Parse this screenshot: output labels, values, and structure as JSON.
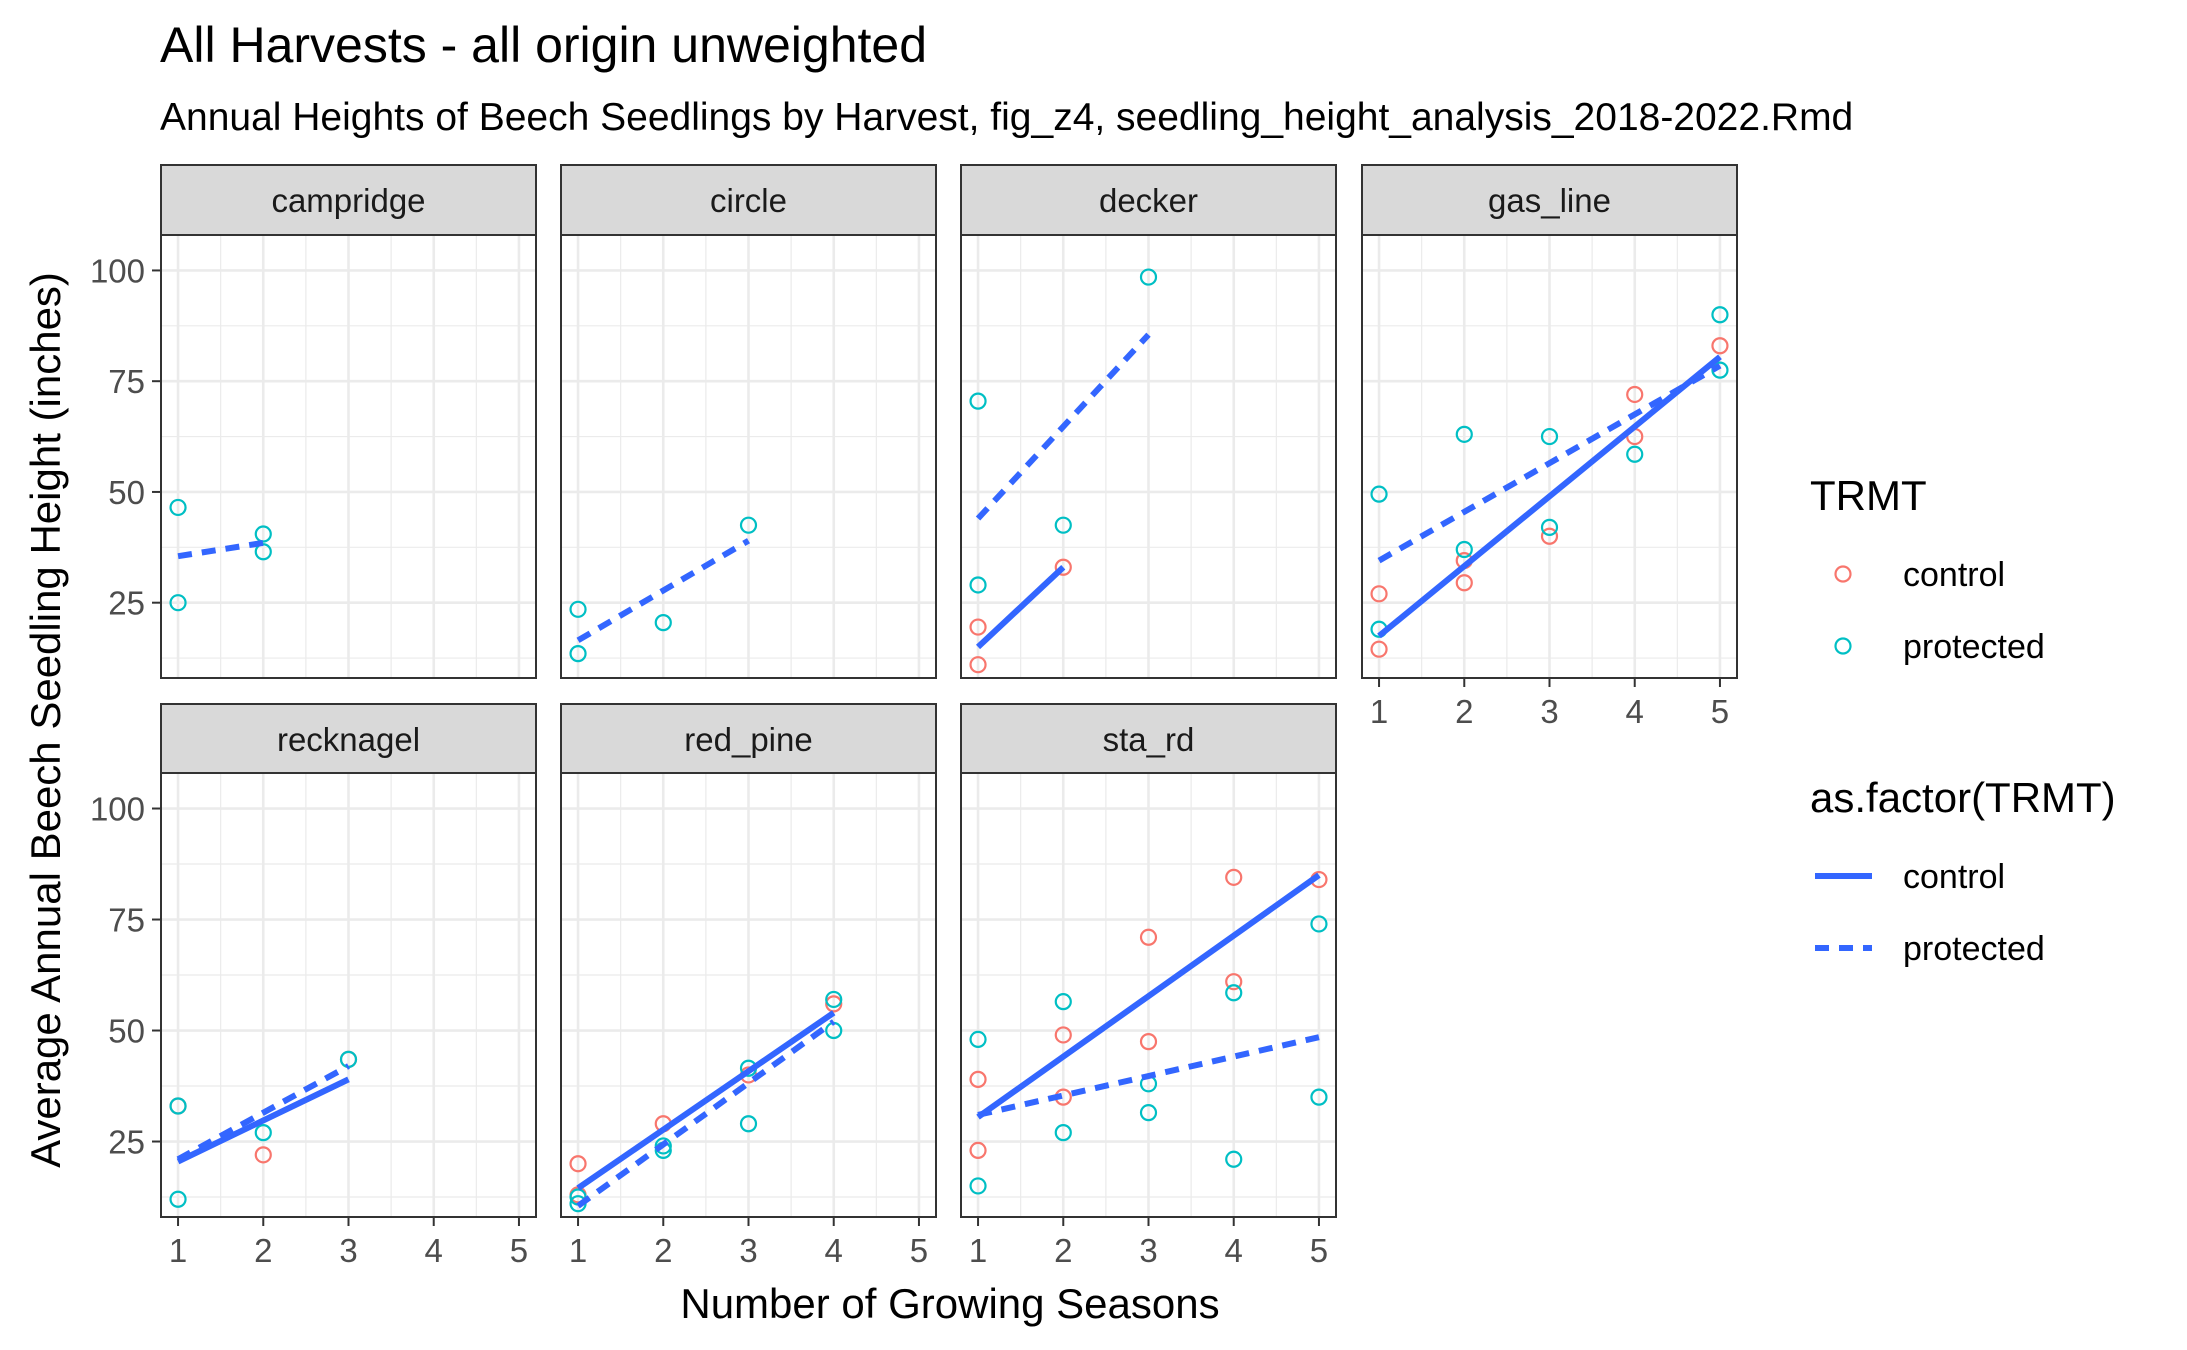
{
  "title": "All Harvests - all origin unweighted",
  "subtitle": "Annual Heights of Beech Seedlings by Harvest, fig_z4, seedling_height_analysis_2018-2022.Rmd",
  "colors": {
    "control": "#F8766D",
    "protected": "#00BFC4",
    "fit_line": "#3366FF",
    "strip_fill": "#D9D9D9",
    "grid": "#EBEBEB",
    "panel_border": "#333333"
  },
  "chart_data": {
    "type": "scatter",
    "xlabel": "Number of Growing Seasons",
    "ylabel": "Average Annual Beech Seedling Height (inches)",
    "xlim": [
      0.8,
      5.2
    ],
    "ylim": [
      8,
      108
    ],
    "x_ticks": [
      1,
      2,
      3,
      4,
      5
    ],
    "y_ticks": [
      25,
      50,
      75,
      100
    ],
    "grid": true,
    "legend_position": "right",
    "legends": [
      {
        "title": "TRMT",
        "kind": "point",
        "items": [
          {
            "label": "control",
            "color": "#F8766D"
          },
          {
            "label": "protected",
            "color": "#00BFC4"
          }
        ]
      },
      {
        "title": "as.factor(TRMT)",
        "kind": "line",
        "items": [
          {
            "label": "control",
            "linetype": "solid"
          },
          {
            "label": "protected",
            "linetype": "dashed"
          }
        ]
      }
    ],
    "panels": [
      {
        "name": "campridge",
        "points": {
          "control": [],
          "protected": [
            [
              1,
              46.5
            ],
            [
              1,
              25
            ],
            [
              2,
              40.5
            ],
            [
              2,
              36.5
            ]
          ]
        },
        "fits": {
          "control": null,
          "protected": [
            [
              1,
              35.5
            ],
            [
              2,
              38.5
            ]
          ]
        }
      },
      {
        "name": "circle",
        "points": {
          "control": [],
          "protected": [
            [
              1,
              23.5
            ],
            [
              1,
              13.5
            ],
            [
              2,
              20.5
            ],
            [
              3,
              42.5
            ]
          ]
        },
        "fits": {
          "control": null,
          "protected": [
            [
              1,
              16.5
            ],
            [
              3,
              39
            ]
          ]
        }
      },
      {
        "name": "decker",
        "points": {
          "control": [
            [
              1,
              19.5
            ],
            [
              1,
              11
            ],
            [
              2,
              33
            ]
          ],
          "protected": [
            [
              1,
              70.5
            ],
            [
              1,
              29
            ],
            [
              2,
              42.5
            ],
            [
              3,
              98.5
            ]
          ]
        },
        "fits": {
          "control": [
            [
              1,
              15
            ],
            [
              2,
              33
            ]
          ],
          "protected": [
            [
              1,
              44
            ],
            [
              3,
              85.5
            ]
          ]
        }
      },
      {
        "name": "gas_line",
        "points": {
          "control": [
            [
              1,
              27
            ],
            [
              1,
              14.5
            ],
            [
              2,
              34.5
            ],
            [
              2,
              29.5
            ],
            [
              3,
              40
            ],
            [
              4,
              72
            ],
            [
              4,
              62.5
            ],
            [
              5,
              83
            ]
          ],
          "protected": [
            [
              1,
              49.5
            ],
            [
              1,
              19
            ],
            [
              2,
              63
            ],
            [
              2,
              37
            ],
            [
              3,
              62.5
            ],
            [
              3,
              42
            ],
            [
              4,
              58.5
            ],
            [
              5,
              90
            ],
            [
              5,
              77.5
            ]
          ]
        },
        "fits": {
          "control": [
            [
              1,
              17.5
            ],
            [
              5,
              80.5
            ]
          ],
          "protected": [
            [
              1,
              34.5
            ],
            [
              5,
              78.5
            ]
          ]
        }
      },
      {
        "name": "recknagel",
        "points": {
          "control": [
            [
              1,
              33
            ],
            [
              2,
              22
            ],
            [
              3,
              43.5
            ]
          ],
          "protected": [
            [
              1,
              33
            ],
            [
              1,
              12
            ],
            [
              2,
              27
            ],
            [
              3,
              43.5
            ]
          ]
        },
        "fits": {
          "control": [
            [
              1,
              20.5
            ],
            [
              3,
              39
            ]
          ],
          "protected": [
            [
              1,
              21
            ],
            [
              3,
              42
            ]
          ]
        }
      },
      {
        "name": "red_pine",
        "points": {
          "control": [
            [
              1,
              20
            ],
            [
              1,
              13
            ],
            [
              2,
              29
            ],
            [
              3,
              40
            ],
            [
              4,
              56
            ]
          ],
          "protected": [
            [
              1,
              12.5
            ],
            [
              1,
              11
            ],
            [
              2,
              24
            ],
            [
              2,
              23
            ],
            [
              3,
              41.5
            ],
            [
              3,
              29
            ],
            [
              4,
              57
            ],
            [
              4,
              50
            ]
          ]
        },
        "fits": {
          "control": [
            [
              1,
              14.5
            ],
            [
              4,
              54
            ]
          ],
          "protected": [
            [
              1,
              10.5
            ],
            [
              4,
              52
            ]
          ]
        }
      },
      {
        "name": "sta_rd",
        "points": {
          "control": [
            [
              1,
              39
            ],
            [
              1,
              23
            ],
            [
              2,
              49
            ],
            [
              2,
              35
            ],
            [
              3,
              71
            ],
            [
              3,
              47.5
            ],
            [
              4,
              84.5
            ],
            [
              4,
              61
            ],
            [
              5,
              84
            ]
          ],
          "protected": [
            [
              1,
              48
            ],
            [
              1,
              15
            ],
            [
              2,
              56.5
            ],
            [
              2,
              27
            ],
            [
              3,
              38
            ],
            [
              3,
              31.5
            ],
            [
              4,
              58.5
            ],
            [
              4,
              21
            ],
            [
              5,
              74
            ],
            [
              5,
              35
            ]
          ]
        },
        "fits": {
          "control": [
            [
              1,
              30.5
            ],
            [
              5,
              85
            ]
          ],
          "protected": [
            [
              1,
              31
            ],
            [
              5,
              48.5
            ]
          ]
        }
      }
    ]
  }
}
